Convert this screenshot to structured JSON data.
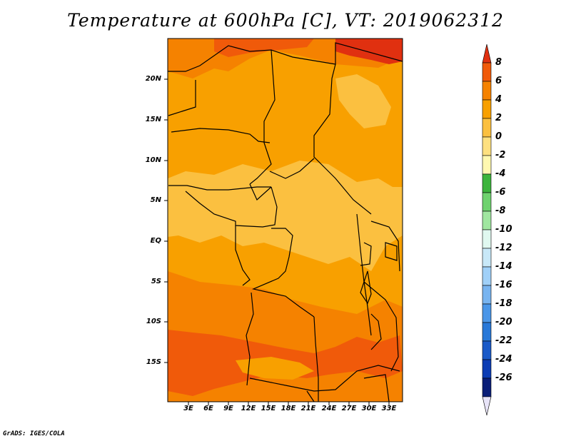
{
  "title": "Temperature at 600hPa [C], VT: 2019062312",
  "footer": "GrADS: IGES/COLA",
  "map": {
    "y_labels": [
      "20N",
      "15N",
      "10N",
      "5N",
      "EQ",
      "5S",
      "10S",
      "15S"
    ],
    "x_labels": [
      "3E",
      "6E",
      "9E",
      "12E",
      "15E",
      "18E",
      "21E",
      "24E",
      "27E",
      "30E",
      "33E"
    ]
  },
  "colorbar": {
    "labels": [
      "8",
      "6",
      "4",
      "2",
      "0",
      "-2",
      "-4",
      "-6",
      "-8",
      "-10",
      "-12",
      "-14",
      "-16",
      "-18",
      "-20",
      "-22",
      "-24",
      "-26"
    ],
    "colors": [
      "#e03010",
      "#f05a0a",
      "#f58200",
      "#f8a000",
      "#fbc040",
      "#fde080",
      "#fff8b0",
      "#3cb43c",
      "#6ed26e",
      "#a0e6a0",
      "#e0f8f0",
      "#c8e8f8",
      "#a0d0f8",
      "#78b4f0",
      "#4a96e8",
      "#2878d8",
      "#1a5ac8",
      "#0c3cb4",
      "#0a1e78",
      "#e8e4f8"
    ]
  }
}
